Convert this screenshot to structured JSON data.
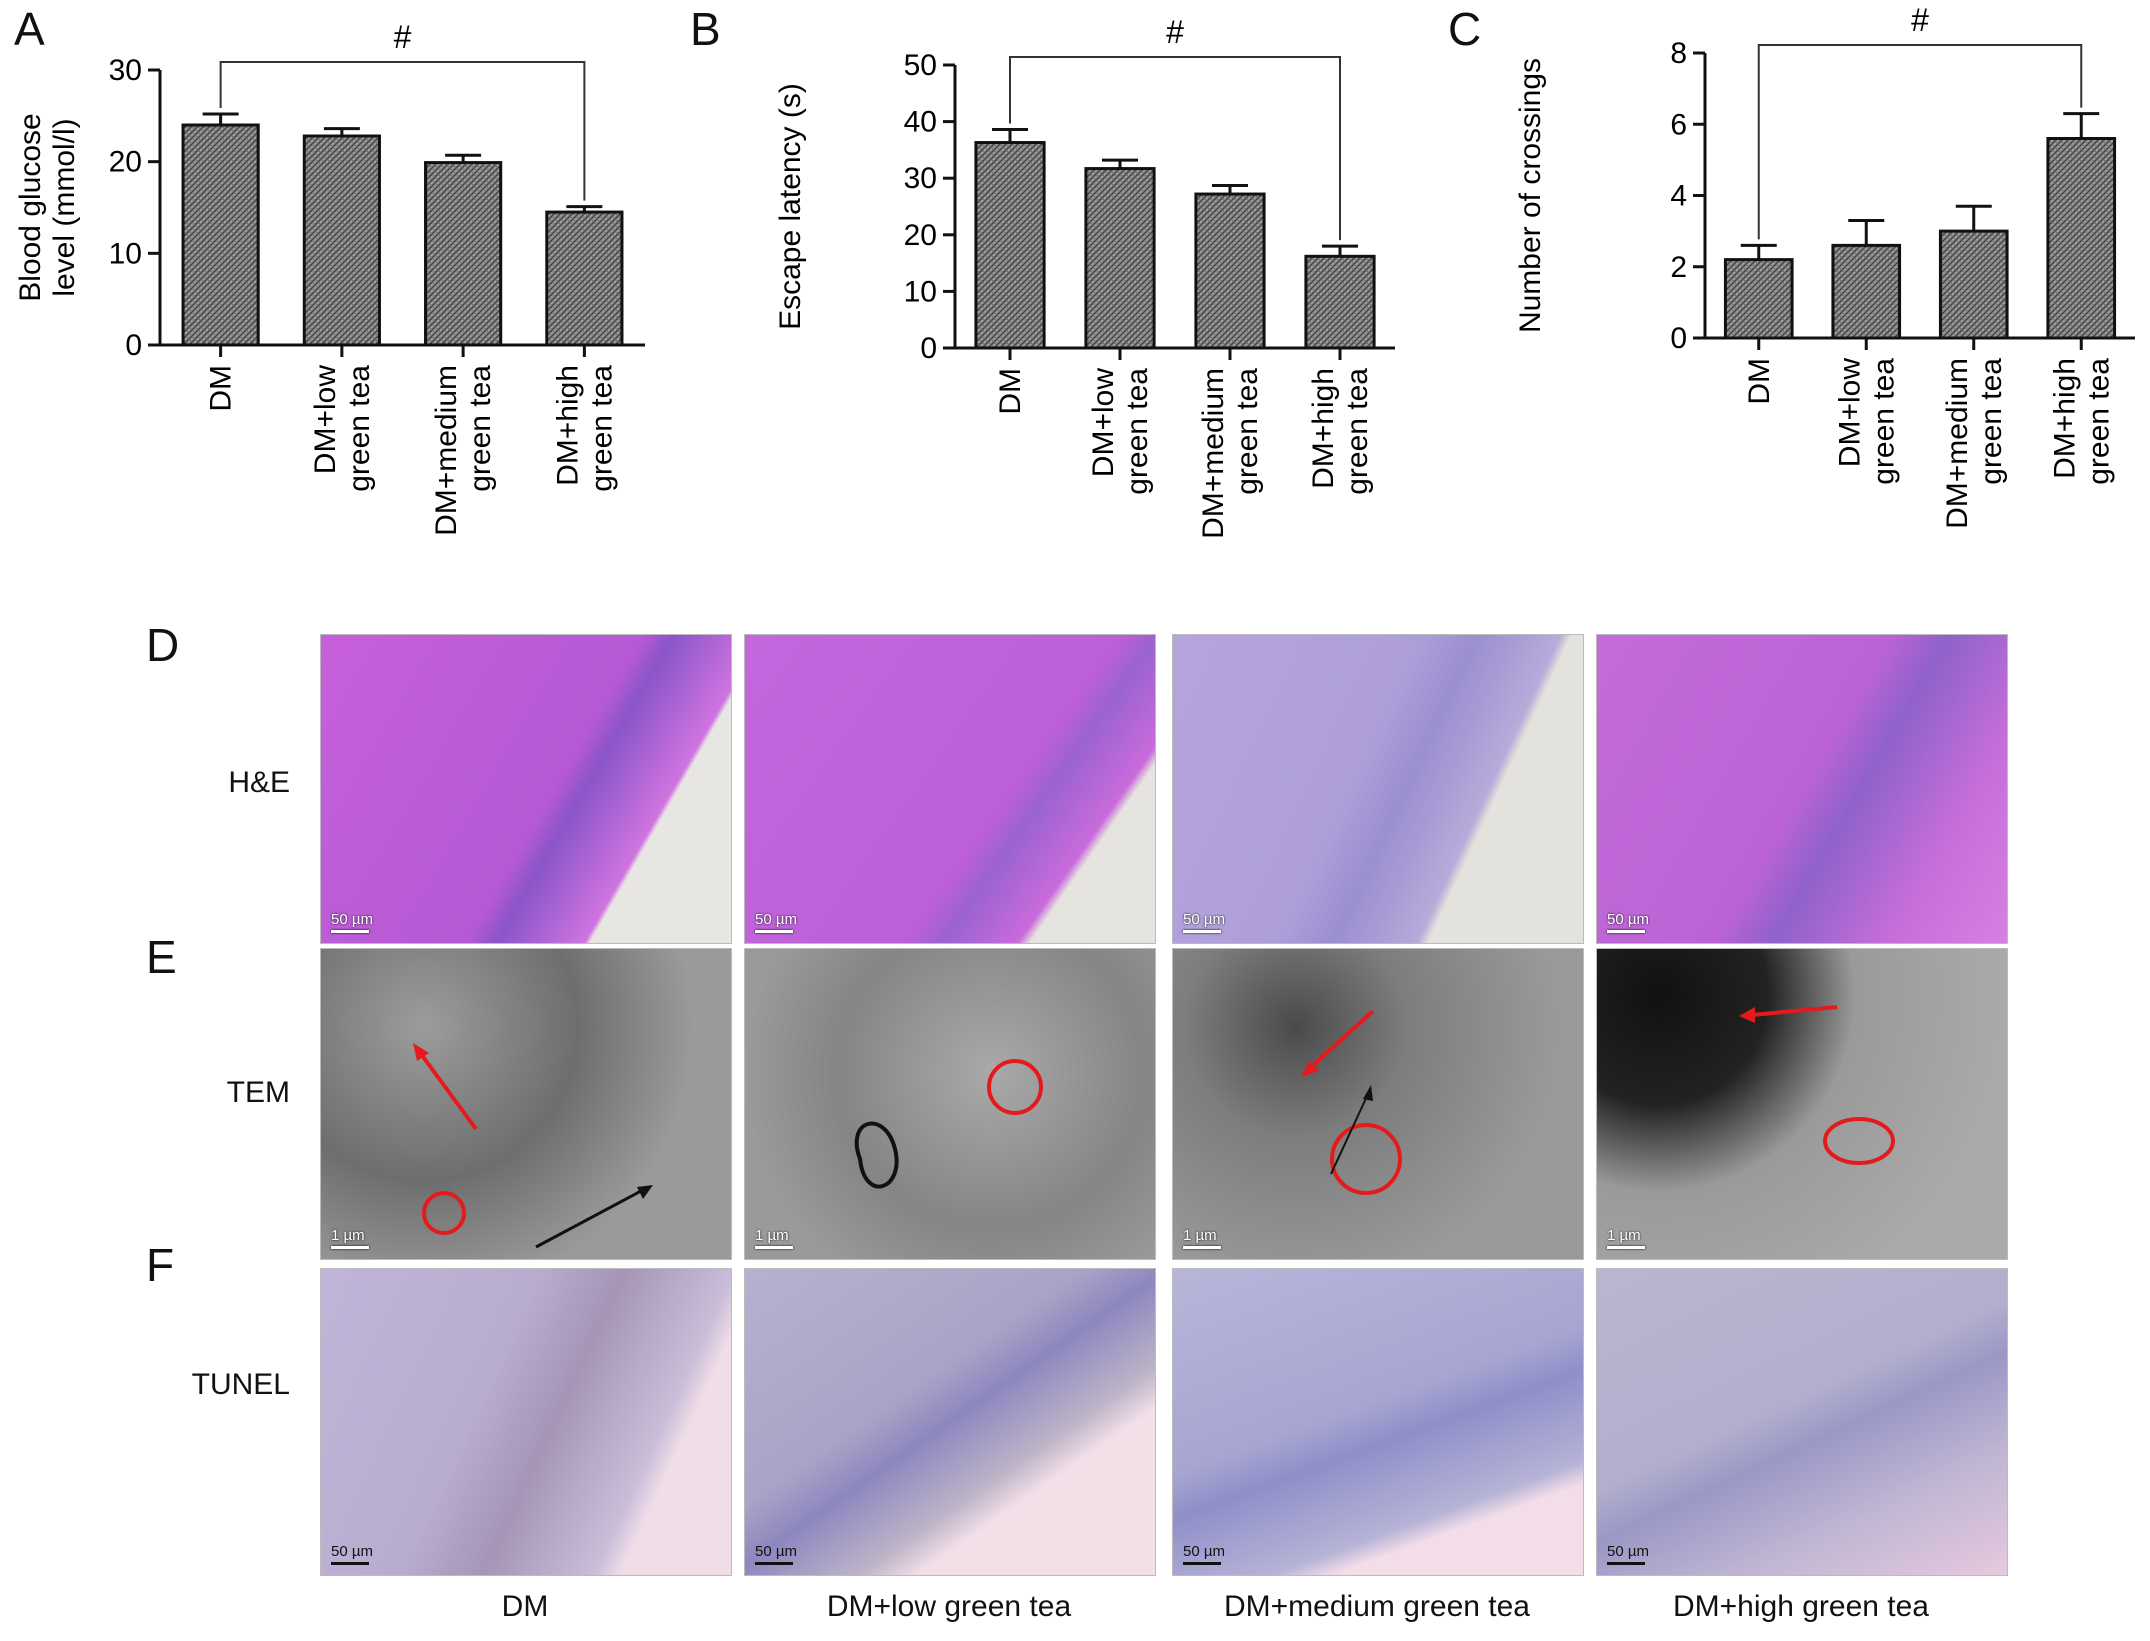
{
  "chart_data": [
    {
      "panel": "A",
      "type": "bar",
      "ylabel_lines": [
        "Blood glucose",
        "level (mmol/l)"
      ],
      "categories": [
        [
          "DM"
        ],
        [
          "DM+low",
          "green tea"
        ],
        [
          "DM+medium",
          "green tea"
        ],
        [
          "DM+high",
          "green tea"
        ]
      ],
      "values": [
        24.0,
        22.8,
        19.9,
        14.5
      ],
      "errors": [
        1.2,
        0.8,
        0.8,
        0.6
      ],
      "ylim": [
        0,
        30
      ],
      "yticks": [
        0,
        10,
        20,
        30
      ],
      "significance": {
        "from": 0,
        "to": 3,
        "label": "#"
      }
    },
    {
      "panel": "B",
      "type": "bar",
      "ylabel_lines": [
        "Escape latency (s)"
      ],
      "categories": [
        [
          "DM"
        ],
        [
          "DM+low",
          "green tea"
        ],
        [
          "DM+medium",
          "green tea"
        ],
        [
          "DM+high",
          "green tea"
        ]
      ],
      "values": [
        36.3,
        31.7,
        27.2,
        16.2
      ],
      "errors": [
        2.3,
        1.5,
        1.5,
        1.8
      ],
      "ylim": [
        0,
        50
      ],
      "yticks": [
        0,
        10,
        20,
        30,
        40,
        50
      ],
      "significance": {
        "from": 0,
        "to": 3,
        "label": "#"
      }
    },
    {
      "panel": "C",
      "type": "bar",
      "ylabel_lines": [
        "Number of crossings"
      ],
      "categories": [
        [
          "DM"
        ],
        [
          "DM+low",
          "green tea"
        ],
        [
          "DM+medium",
          "green tea"
        ],
        [
          "DM+high",
          "green tea"
        ]
      ],
      "values": [
        2.2,
        2.6,
        3.0,
        5.6
      ],
      "errors": [
        0.4,
        0.7,
        0.7,
        0.7
      ],
      "ylim": [
        0,
        8
      ],
      "yticks": [
        0,
        2,
        4,
        6,
        8
      ],
      "significance": {
        "from": 0,
        "to": 3,
        "label": "#"
      }
    }
  ],
  "panels": {
    "A": "A",
    "B": "B",
    "C": "C",
    "D": "D",
    "E": "E",
    "F": "F"
  },
  "rows": {
    "he": "H&E",
    "tem": "TEM",
    "tunel": "TUNEL"
  },
  "columns": [
    "DM",
    "DM+low green tea",
    "DM+medium green tea",
    "DM+high green tea"
  ],
  "scales": {
    "he": [
      "50 µm",
      "50 µm",
      "50 µm",
      "50 µm"
    ],
    "tem": [
      "1 µm",
      "1 µm",
      "1 µm",
      "1 µm"
    ],
    "tunel": [
      "50 µm",
      "50 µm",
      "50 µm",
      "50 µm"
    ]
  },
  "colors": {
    "he_pink": "#c463d8",
    "he_pale": "#b9a6d6",
    "tem_gray": "#8c8c8c",
    "tunel_bg": "#c7bcd6",
    "marker_red": "#e41a1c",
    "bar_fill": "#8a8a8a"
  }
}
